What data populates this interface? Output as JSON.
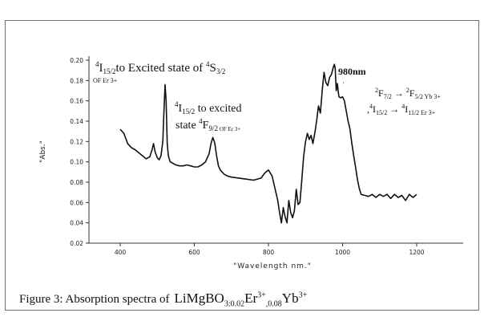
{
  "caption": {
    "prefix": "Figure 3: Absorption spectra of",
    "formula_base": "LiMgBO",
    "formula_sub1": "3:0.02",
    "formula_er": "Er",
    "formula_sup1": "3+",
    "formula_sub2": ",0.08",
    "formula_yb": "Yb",
    "formula_sup2": "3+"
  },
  "annotations": {
    "a1_sup": "4",
    "a1_main_a": "I",
    "a1_sub_a": "15/2",
    "a1_main_b": "to Excited state of ",
    "a1_sup_b": "4",
    "a1_main_c": "S",
    "a1_sub_c": "3/2",
    "a1_line2": "OF Er 3+",
    "a2_sup": "4",
    "a2_main_a": "I",
    "a2_sub_a": "15/2",
    "a2_main_b": " to excited",
    "a2_line2_a": "state ",
    "a2_sup_b": "4",
    "a2_main_c": "F",
    "a2_sub_c": "9/2",
    "a2_sub_d": " OF Er 3+",
    "peak_label": "980nm",
    "t1_sup_a": "2",
    "t1_a": "F",
    "t1_sub_a": "7/2",
    "t1_arrow": " → ",
    "t1_sup_b": "2",
    "t1_b": "F",
    "t1_sub_b": "5/2",
    "t1_ion": "Yb 3+",
    "t2_prefix": ",",
    "t2_sup_a": "4",
    "t2_a": "I",
    "t2_sub_a": "15/2",
    "t2_arrow": " → ",
    "t2_sup_b": "4",
    "t2_b": "I",
    "t2_sub_b": "11/2",
    "t2_ion": "Er 3+"
  },
  "chart_data": {
    "type": "line",
    "title": "",
    "xlabel": "\"Wavelength nm.\"",
    "ylabel": "\"Abs.\"",
    "xlim": [
      300,
      1200
    ],
    "ylim": [
      0.02,
      0.2
    ],
    "xticks": [
      400,
      600,
      800,
      1000,
      1200
    ],
    "xtick_labels": [
      "400",
      "600",
      "800",
      "1000",
      "1200"
    ],
    "yticks": [
      0.02,
      0.04,
      0.06,
      0.08,
      0.1,
      0.12,
      0.14,
      0.16,
      0.18,
      0.2
    ],
    "ytick_labels": [
      "0.02",
      "0.04",
      "0.06",
      "0.08",
      "0.10",
      "0.12",
      "0.14",
      "0.16",
      "0.18",
      "0.20"
    ],
    "grid": false,
    "series": [
      {
        "color": "#111111",
        "x": [
          400,
          410,
          420,
          430,
          440,
          450,
          460,
          470,
          480,
          486,
          490,
          494,
          500,
          505,
          510,
          515,
          518,
          521,
          524,
          527,
          530,
          535,
          540,
          550,
          560,
          570,
          580,
          590,
          600,
          610,
          620,
          630,
          640,
          645,
          650,
          655,
          660,
          665,
          670,
          680,
          690,
          700,
          720,
          740,
          760,
          780,
          790,
          800,
          810,
          815,
          820,
          825,
          830,
          835,
          840,
          845,
          850,
          855,
          860,
          865,
          870,
          875,
          880,
          885,
          890,
          895,
          900,
          905,
          910,
          915,
          920,
          925,
          930,
          935,
          940,
          945,
          950,
          955,
          960,
          965,
          970,
          975,
          978,
          980,
          983,
          986,
          990,
          995,
          1000,
          1005,
          1010,
          1015,
          1020,
          1025,
          1030,
          1035,
          1040,
          1045,
          1050,
          1060,
          1070,
          1080,
          1090,
          1100,
          1110,
          1120,
          1130,
          1140,
          1150,
          1160,
          1170,
          1180,
          1190,
          1200
        ],
        "y": [
          0.132,
          0.128,
          0.118,
          0.114,
          0.112,
          0.109,
          0.106,
          0.103,
          0.105,
          0.112,
          0.118,
          0.11,
          0.104,
          0.102,
          0.106,
          0.12,
          0.15,
          0.176,
          0.16,
          0.118,
          0.106,
          0.1,
          0.099,
          0.097,
          0.096,
          0.096,
          0.097,
          0.096,
          0.095,
          0.095,
          0.097,
          0.1,
          0.108,
          0.118,
          0.124,
          0.119,
          0.106,
          0.096,
          0.092,
          0.088,
          0.086,
          0.085,
          0.084,
          0.083,
          0.082,
          0.084,
          0.089,
          0.092,
          0.086,
          0.078,
          0.07,
          0.062,
          0.05,
          0.04,
          0.055,
          0.046,
          0.04,
          0.062,
          0.05,
          0.045,
          0.052,
          0.073,
          0.058,
          0.06,
          0.082,
          0.105,
          0.12,
          0.128,
          0.122,
          0.126,
          0.118,
          0.128,
          0.14,
          0.155,
          0.148,
          0.17,
          0.188,
          0.178,
          0.175,
          0.183,
          0.186,
          0.193,
          0.196,
          0.192,
          0.17,
          0.177,
          0.164,
          0.163,
          0.164,
          0.16,
          0.15,
          0.14,
          0.132,
          0.118,
          0.106,
          0.095,
          0.083,
          0.074,
          0.068,
          0.067,
          0.066,
          0.068,
          0.065,
          0.068,
          0.066,
          0.068,
          0.064,
          0.068,
          0.065,
          0.067,
          0.062,
          0.068,
          0.065,
          0.068
        ]
      }
    ],
    "peak_marker_x": 980
  }
}
